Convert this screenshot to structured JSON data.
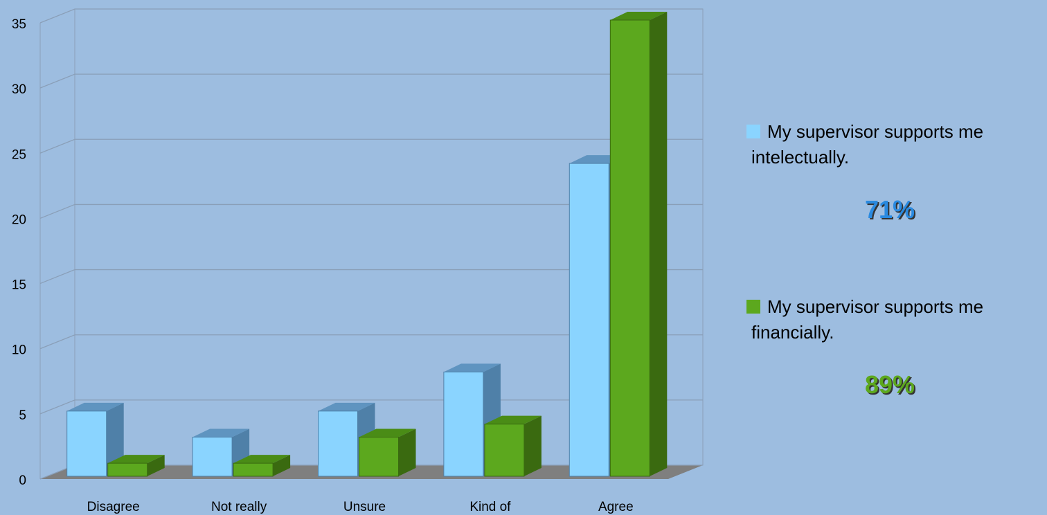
{
  "chart_data": {
    "type": "bar3d",
    "categories": [
      "Disagree",
      "Not really",
      "Unsure",
      "Kind of",
      "Agree"
    ],
    "series": [
      {
        "name": "My supervisor supports me intelectually.",
        "color": "#8ad4ff",
        "side": "#4f80a8",
        "top": "#5f94c0",
        "values": [
          5,
          3,
          5,
          8,
          24
        ],
        "annotation": "71%",
        "annotation_color": "#2a8ae0"
      },
      {
        "name": "My supervisor supports me financially.",
        "color": "#5ca81e",
        "side": "#3a6a10",
        "top": "#4a8c16",
        "values": [
          1,
          1,
          3,
          4,
          35
        ],
        "annotation": "89%",
        "annotation_color": "#5ca81e"
      }
    ],
    "ylim": [
      0,
      35
    ],
    "yticks": [
      0,
      5,
      10,
      15,
      20,
      25,
      30,
      35
    ],
    "grid": true
  }
}
